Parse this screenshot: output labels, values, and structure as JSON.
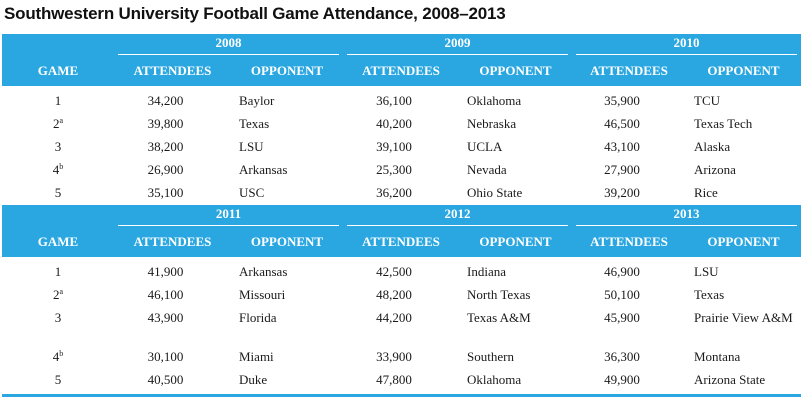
{
  "title": "Southwestern University Football Game Attendance, 2008–2013",
  "headers": {
    "game": "GAME",
    "attendees": "ATTENDEES",
    "opponent": "OPPONENT"
  },
  "accent_color": "#2aa7e0",
  "blocks": [
    {
      "years": [
        "2008",
        "2009",
        "2010"
      ],
      "rows": [
        {
          "game": "1",
          "sup": "",
          "cells": [
            [
              "34,200",
              "Baylor"
            ],
            [
              "36,100",
              "Oklahoma"
            ],
            [
              "35,900",
              "TCU"
            ]
          ]
        },
        {
          "game": "2",
          "sup": "a",
          "cells": [
            [
              "39,800",
              "Texas"
            ],
            [
              "40,200",
              "Nebraska"
            ],
            [
              "46,500",
              "Texas Tech"
            ]
          ]
        },
        {
          "game": "3",
          "sup": "",
          "cells": [
            [
              "38,200",
              "LSU"
            ],
            [
              "39,100",
              "UCLA"
            ],
            [
              "43,100",
              "Alaska"
            ]
          ]
        },
        {
          "game": "4",
          "sup": "b",
          "cells": [
            [
              "26,900",
              "Arkansas"
            ],
            [
              "25,300",
              "Nevada"
            ],
            [
              "27,900",
              "Arizona"
            ]
          ]
        },
        {
          "game": "5",
          "sup": "",
          "cells": [
            [
              "35,100",
              "USC"
            ],
            [
              "36,200",
              "Ohio State"
            ],
            [
              "39,200",
              "Rice"
            ]
          ]
        }
      ]
    },
    {
      "years": [
        "2011",
        "2012",
        "2013"
      ],
      "rows": [
        {
          "game": "1",
          "sup": "",
          "cells": [
            [
              "41,900",
              "Arkansas"
            ],
            [
              "42,500",
              "Indiana"
            ],
            [
              "46,900",
              "LSU"
            ]
          ]
        },
        {
          "game": "2",
          "sup": "a",
          "cells": [
            [
              "46,100",
              "Missouri"
            ],
            [
              "48,200",
              "North Texas"
            ],
            [
              "50,100",
              "Texas"
            ]
          ]
        },
        {
          "game": "3",
          "sup": "",
          "cells": [
            [
              "43,900",
              "Florida"
            ],
            [
              "44,200",
              "Texas A&M"
            ],
            [
              "45,900",
              "Prairie View A&M"
            ]
          ]
        },
        {
          "game": "4",
          "sup": "b",
          "cells": [
            [
              "30,100",
              "Miami"
            ],
            [
              "33,900",
              "Southern"
            ],
            [
              "36,300",
              "Montana"
            ]
          ]
        },
        {
          "game": "5",
          "sup": "",
          "cells": [
            [
              "40,500",
              "Duke"
            ],
            [
              "47,800",
              "Oklahoma"
            ],
            [
              "49,900",
              "Arizona State"
            ]
          ]
        }
      ]
    }
  ]
}
